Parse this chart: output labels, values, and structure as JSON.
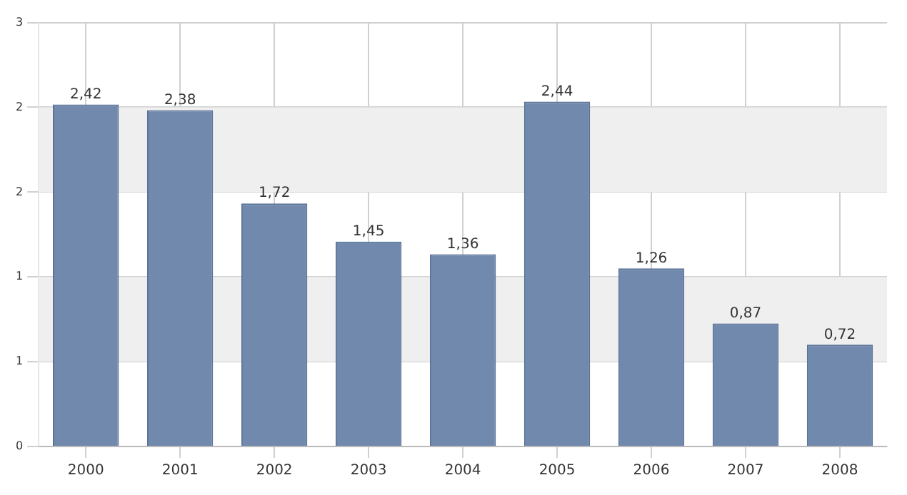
{
  "chart_data": {
    "type": "bar",
    "categories": [
      "2000",
      "2001",
      "2002",
      "2003",
      "2004",
      "2005",
      "2006",
      "2007",
      "2008"
    ],
    "values": [
      2.42,
      2.38,
      1.72,
      1.45,
      1.36,
      2.44,
      1.26,
      0.87,
      0.72
    ],
    "value_labels": [
      "2,42",
      "2,38",
      "1,72",
      "1,45",
      "1,36",
      "2,44",
      "1,26",
      "0,87",
      "0,72"
    ],
    "color": "#7189ad",
    "ylim": [
      0,
      3
    ],
    "yticks": [
      0,
      {
        "value": 0.6,
        "label": "1"
      },
      {
        "value": 1.2,
        "label": "1"
      },
      {
        "value": 1.8,
        "label": "2"
      },
      {
        "value": 2.4,
        "label": "2"
      },
      3
    ],
    "bands": [
      {
        "axis": "y",
        "from": 0.6,
        "to": 1.2,
        "color": "#efefef"
      },
      {
        "axis": "y",
        "from": 1.8,
        "to": 2.4,
        "color": "#efefef"
      }
    ],
    "grid": true,
    "legend": false
  }
}
